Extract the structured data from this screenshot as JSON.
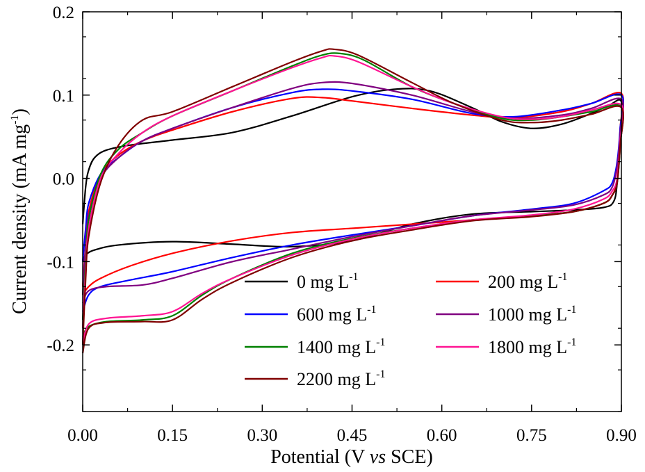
{
  "chart_data": {
    "type": "line",
    "title": "",
    "xlabel_parts": [
      "Potential (V ",
      "vs",
      " SCE)"
    ],
    "ylabel_base": "Current density (mA mg",
    "ylabel_sup": "-1",
    "ylabel_close": ")",
    "xlim": [
      0.0,
      0.9
    ],
    "ylim": [
      -0.28,
      0.2
    ],
    "xticks": [
      0.0,
      0.15,
      0.3,
      0.45,
      0.6,
      0.75,
      0.9
    ],
    "xtick_labels": [
      "0.00",
      "0.15",
      "0.30",
      "0.45",
      "0.60",
      "0.75",
      "0.90"
    ],
    "yticks": [
      -0.2,
      -0.1,
      0.0,
      0.1,
      0.2
    ],
    "ytick_labels": [
      "-0.2",
      "-0.1",
      "0.0",
      "0.1",
      "0.2"
    ],
    "grid": false,
    "legend_position": "bottom-right",
    "legend_unit": " mg L",
    "legend_sup": "-1",
    "series": [
      {
        "name": "0",
        "color": "#000000",
        "upper": [
          [
            0.0,
            -0.055
          ],
          [
            0.005,
            -0.01
          ],
          [
            0.01,
            0.01
          ],
          [
            0.02,
            0.025
          ],
          [
            0.04,
            0.034
          ],
          [
            0.08,
            0.04
          ],
          [
            0.15,
            0.046
          ],
          [
            0.25,
            0.055
          ],
          [
            0.35,
            0.075
          ],
          [
            0.45,
            0.098
          ],
          [
            0.52,
            0.107
          ],
          [
            0.58,
            0.105
          ],
          [
            0.65,
            0.085
          ],
          [
            0.7,
            0.068
          ],
          [
            0.75,
            0.06
          ],
          [
            0.8,
            0.065
          ],
          [
            0.85,
            0.078
          ],
          [
            0.88,
            0.088
          ],
          [
            0.9,
            0.092
          ]
        ],
        "lower": [
          [
            0.9,
            0.092
          ],
          [
            0.898,
            0.05
          ],
          [
            0.893,
            -0.005
          ],
          [
            0.887,
            -0.028
          ],
          [
            0.87,
            -0.035
          ],
          [
            0.82,
            -0.038
          ],
          [
            0.75,
            -0.04
          ],
          [
            0.65,
            -0.043
          ],
          [
            0.55,
            -0.055
          ],
          [
            0.45,
            -0.075
          ],
          [
            0.35,
            -0.082
          ],
          [
            0.25,
            -0.079
          ],
          [
            0.15,
            -0.076
          ],
          [
            0.06,
            -0.08
          ],
          [
            0.02,
            -0.086
          ],
          [
            0.005,
            -0.092
          ],
          [
            0.0,
            -0.1
          ]
        ]
      },
      {
        "name": "200",
        "color": "#ff0000",
        "upper": [
          [
            0.0,
            -0.13
          ],
          [
            0.005,
            -0.08
          ],
          [
            0.01,
            -0.04
          ],
          [
            0.03,
            0.005
          ],
          [
            0.06,
            0.028
          ],
          [
            0.1,
            0.045
          ],
          [
            0.15,
            0.058
          ],
          [
            0.25,
            0.08
          ],
          [
            0.35,
            0.096
          ],
          [
            0.4,
            0.097
          ],
          [
            0.45,
            0.093
          ],
          [
            0.55,
            0.084
          ],
          [
            0.65,
            0.076
          ],
          [
            0.72,
            0.073
          ],
          [
            0.8,
            0.08
          ],
          [
            0.85,
            0.09
          ],
          [
            0.9,
            0.102
          ]
        ],
        "lower": [
          [
            0.9,
            0.102
          ],
          [
            0.898,
            0.06
          ],
          [
            0.893,
            0.0
          ],
          [
            0.885,
            -0.02
          ],
          [
            0.87,
            -0.03
          ],
          [
            0.82,
            -0.04
          ],
          [
            0.75,
            -0.045
          ],
          [
            0.65,
            -0.05
          ],
          [
            0.55,
            -0.055
          ],
          [
            0.45,
            -0.06
          ],
          [
            0.35,
            -0.065
          ],
          [
            0.25,
            -0.075
          ],
          [
            0.15,
            -0.09
          ],
          [
            0.08,
            -0.105
          ],
          [
            0.03,
            -0.12
          ],
          [
            0.01,
            -0.13
          ],
          [
            0.0,
            -0.14
          ]
        ]
      },
      {
        "name": "600",
        "color": "#0000ff",
        "upper": [
          [
            0.0,
            -0.1
          ],
          [
            0.005,
            -0.06
          ],
          [
            0.01,
            -0.03
          ],
          [
            0.03,
            0.005
          ],
          [
            0.06,
            0.025
          ],
          [
            0.1,
            0.045
          ],
          [
            0.15,
            0.06
          ],
          [
            0.25,
            0.085
          ],
          [
            0.35,
            0.103
          ],
          [
            0.4,
            0.107
          ],
          [
            0.45,
            0.105
          ],
          [
            0.55,
            0.095
          ],
          [
            0.65,
            0.078
          ],
          [
            0.72,
            0.074
          ],
          [
            0.8,
            0.082
          ],
          [
            0.85,
            0.09
          ],
          [
            0.9,
            0.1
          ]
        ],
        "lower": [
          [
            0.9,
            0.1
          ],
          [
            0.898,
            0.06
          ],
          [
            0.893,
            0.02
          ],
          [
            0.885,
            -0.005
          ],
          [
            0.87,
            -0.015
          ],
          [
            0.82,
            -0.03
          ],
          [
            0.75,
            -0.037
          ],
          [
            0.65,
            -0.045
          ],
          [
            0.55,
            -0.057
          ],
          [
            0.45,
            -0.068
          ],
          [
            0.35,
            -0.08
          ],
          [
            0.25,
            -0.095
          ],
          [
            0.15,
            -0.112
          ],
          [
            0.08,
            -0.122
          ],
          [
            0.03,
            -0.13
          ],
          [
            0.01,
            -0.14
          ],
          [
            0.0,
            -0.16
          ]
        ]
      },
      {
        "name": "1000",
        "color": "#800080",
        "upper": [
          [
            0.0,
            -0.14
          ],
          [
            0.005,
            -0.08
          ],
          [
            0.01,
            -0.045
          ],
          [
            0.03,
            0.0
          ],
          [
            0.06,
            0.025
          ],
          [
            0.1,
            0.045
          ],
          [
            0.15,
            0.06
          ],
          [
            0.25,
            0.085
          ],
          [
            0.35,
            0.108
          ],
          [
            0.4,
            0.115
          ],
          [
            0.45,
            0.114
          ],
          [
            0.55,
            0.1
          ],
          [
            0.65,
            0.08
          ],
          [
            0.72,
            0.072
          ],
          [
            0.8,
            0.076
          ],
          [
            0.85,
            0.084
          ],
          [
            0.9,
            0.095
          ]
        ],
        "lower": [
          [
            0.9,
            0.095
          ],
          [
            0.898,
            0.055
          ],
          [
            0.893,
            0.015
          ],
          [
            0.885,
            -0.01
          ],
          [
            0.87,
            -0.02
          ],
          [
            0.82,
            -0.032
          ],
          [
            0.75,
            -0.038
          ],
          [
            0.65,
            -0.045
          ],
          [
            0.55,
            -0.057
          ],
          [
            0.45,
            -0.07
          ],
          [
            0.35,
            -0.085
          ],
          [
            0.25,
            -0.1
          ],
          [
            0.15,
            -0.12
          ],
          [
            0.1,
            -0.128
          ],
          [
            0.04,
            -0.13
          ],
          [
            0.01,
            -0.135
          ],
          [
            0.0,
            -0.15
          ]
        ]
      },
      {
        "name": "1400",
        "color": "#008000",
        "upper": [
          [
            0.0,
            -0.17
          ],
          [
            0.005,
            -0.1
          ],
          [
            0.01,
            -0.05
          ],
          [
            0.03,
            0.005
          ],
          [
            0.06,
            0.035
          ],
          [
            0.1,
            0.055
          ],
          [
            0.15,
            0.075
          ],
          [
            0.25,
            0.105
          ],
          [
            0.35,
            0.135
          ],
          [
            0.4,
            0.148
          ],
          [
            0.43,
            0.15
          ],
          [
            0.47,
            0.142
          ],
          [
            0.55,
            0.11
          ],
          [
            0.62,
            0.09
          ],
          [
            0.7,
            0.072
          ],
          [
            0.75,
            0.07
          ],
          [
            0.8,
            0.074
          ],
          [
            0.85,
            0.08
          ],
          [
            0.9,
            0.086
          ]
        ],
        "lower": [
          [
            0.9,
            0.086
          ],
          [
            0.898,
            0.04
          ],
          [
            0.893,
            -0.005
          ],
          [
            0.885,
            -0.02
          ],
          [
            0.87,
            -0.03
          ],
          [
            0.82,
            -0.04
          ],
          [
            0.75,
            -0.045
          ],
          [
            0.65,
            -0.05
          ],
          [
            0.55,
            -0.06
          ],
          [
            0.45,
            -0.072
          ],
          [
            0.35,
            -0.09
          ],
          [
            0.25,
            -0.12
          ],
          [
            0.2,
            -0.14
          ],
          [
            0.15,
            -0.165
          ],
          [
            0.1,
            -0.17
          ],
          [
            0.04,
            -0.172
          ],
          [
            0.01,
            -0.178
          ],
          [
            0.0,
            -0.19
          ]
        ]
      },
      {
        "name": "1800",
        "color": "#ff1493",
        "upper": [
          [
            0.0,
            -0.18
          ],
          [
            0.005,
            -0.11
          ],
          [
            0.01,
            -0.06
          ],
          [
            0.03,
            0.0
          ],
          [
            0.06,
            0.03
          ],
          [
            0.1,
            0.055
          ],
          [
            0.15,
            0.075
          ],
          [
            0.25,
            0.105
          ],
          [
            0.35,
            0.133
          ],
          [
            0.4,
            0.145
          ],
          [
            0.42,
            0.147
          ],
          [
            0.46,
            0.14
          ],
          [
            0.55,
            0.11
          ],
          [
            0.62,
            0.09
          ],
          [
            0.7,
            0.074
          ],
          [
            0.75,
            0.071
          ],
          [
            0.8,
            0.074
          ],
          [
            0.85,
            0.082
          ],
          [
            0.9,
            0.088
          ]
        ],
        "lower": [
          [
            0.9,
            0.088
          ],
          [
            0.898,
            0.045
          ],
          [
            0.893,
            0.0
          ],
          [
            0.885,
            -0.015
          ],
          [
            0.87,
            -0.025
          ],
          [
            0.82,
            -0.037
          ],
          [
            0.75,
            -0.044
          ],
          [
            0.65,
            -0.05
          ],
          [
            0.55,
            -0.06
          ],
          [
            0.45,
            -0.073
          ],
          [
            0.35,
            -0.092
          ],
          [
            0.25,
            -0.12
          ],
          [
            0.2,
            -0.138
          ],
          [
            0.15,
            -0.16
          ],
          [
            0.1,
            -0.165
          ],
          [
            0.04,
            -0.168
          ],
          [
            0.01,
            -0.175
          ],
          [
            0.0,
            -0.2
          ]
        ]
      },
      {
        "name": "2200",
        "color": "#800000",
        "upper": [
          [
            0.0,
            -0.2
          ],
          [
            0.005,
            -0.12
          ],
          [
            0.01,
            -0.07
          ],
          [
            0.03,
            -0.005
          ],
          [
            0.06,
            0.04
          ],
          [
            0.1,
            0.07
          ],
          [
            0.15,
            0.08
          ],
          [
            0.25,
            0.11
          ],
          [
            0.35,
            0.14
          ],
          [
            0.4,
            0.153
          ],
          [
            0.42,
            0.155
          ],
          [
            0.46,
            0.148
          ],
          [
            0.55,
            0.115
          ],
          [
            0.62,
            0.09
          ],
          [
            0.7,
            0.07
          ],
          [
            0.75,
            0.067
          ],
          [
            0.8,
            0.07
          ],
          [
            0.85,
            0.077
          ],
          [
            0.9,
            0.085
          ]
        ],
        "lower": [
          [
            0.9,
            0.085
          ],
          [
            0.898,
            0.04
          ],
          [
            0.893,
            -0.005
          ],
          [
            0.885,
            -0.02
          ],
          [
            0.87,
            -0.03
          ],
          [
            0.82,
            -0.04
          ],
          [
            0.75,
            -0.046
          ],
          [
            0.65,
            -0.051
          ],
          [
            0.55,
            -0.062
          ],
          [
            0.45,
            -0.075
          ],
          [
            0.35,
            -0.095
          ],
          [
            0.25,
            -0.125
          ],
          [
            0.2,
            -0.145
          ],
          [
            0.15,
            -0.17
          ],
          [
            0.1,
            -0.172
          ],
          [
            0.04,
            -0.173
          ],
          [
            0.01,
            -0.18
          ],
          [
            0.0,
            -0.21
          ]
        ]
      }
    ]
  }
}
